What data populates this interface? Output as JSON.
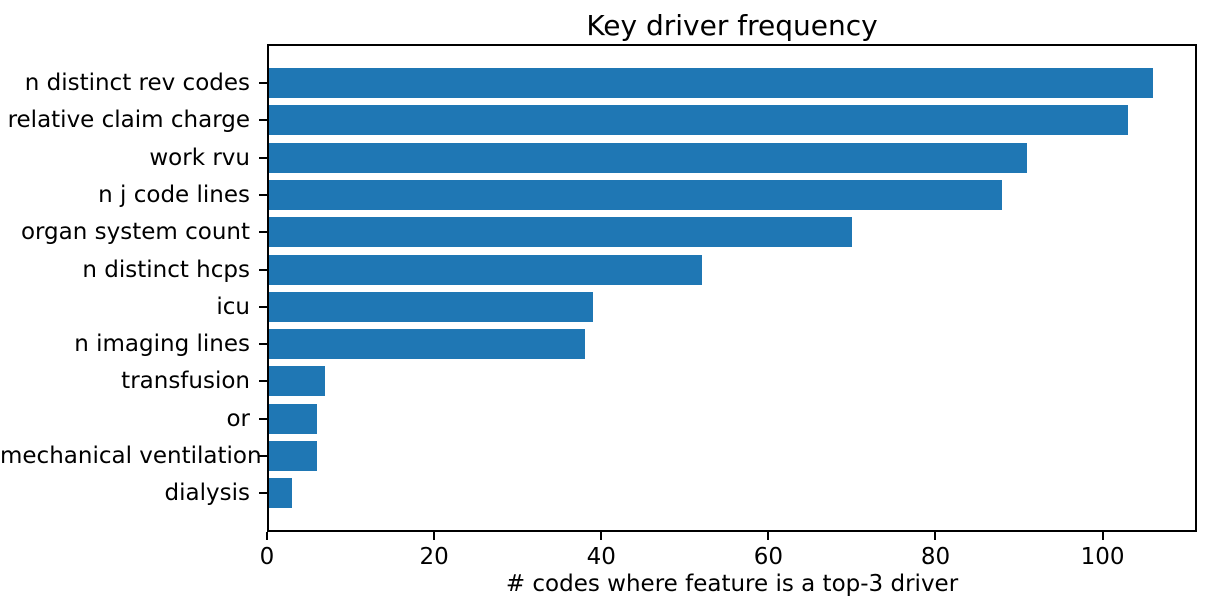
{
  "chart_data": {
    "type": "bar",
    "orientation": "horizontal",
    "title": "Key driver frequency",
    "xlabel": "# codes where feature is a top-3 driver",
    "categories": [
      "n distinct rev codes",
      "relative claim charge",
      "work rvu",
      "n j code lines",
      "organ system count",
      "n distinct hcps",
      "icu",
      "n imaging lines",
      "transfusion",
      "or",
      "mechanical ventilation",
      "dialysis"
    ],
    "values": [
      106,
      103,
      91,
      88,
      70,
      52,
      39,
      38,
      7,
      6,
      6,
      3
    ],
    "xticks": [
      0,
      20,
      40,
      60,
      80,
      100
    ],
    "xlim": [
      0,
      111.3
    ],
    "grid": false,
    "bar_color": "#1f77b4",
    "text_color": "#000000",
    "background_color": "#ffffff"
  }
}
